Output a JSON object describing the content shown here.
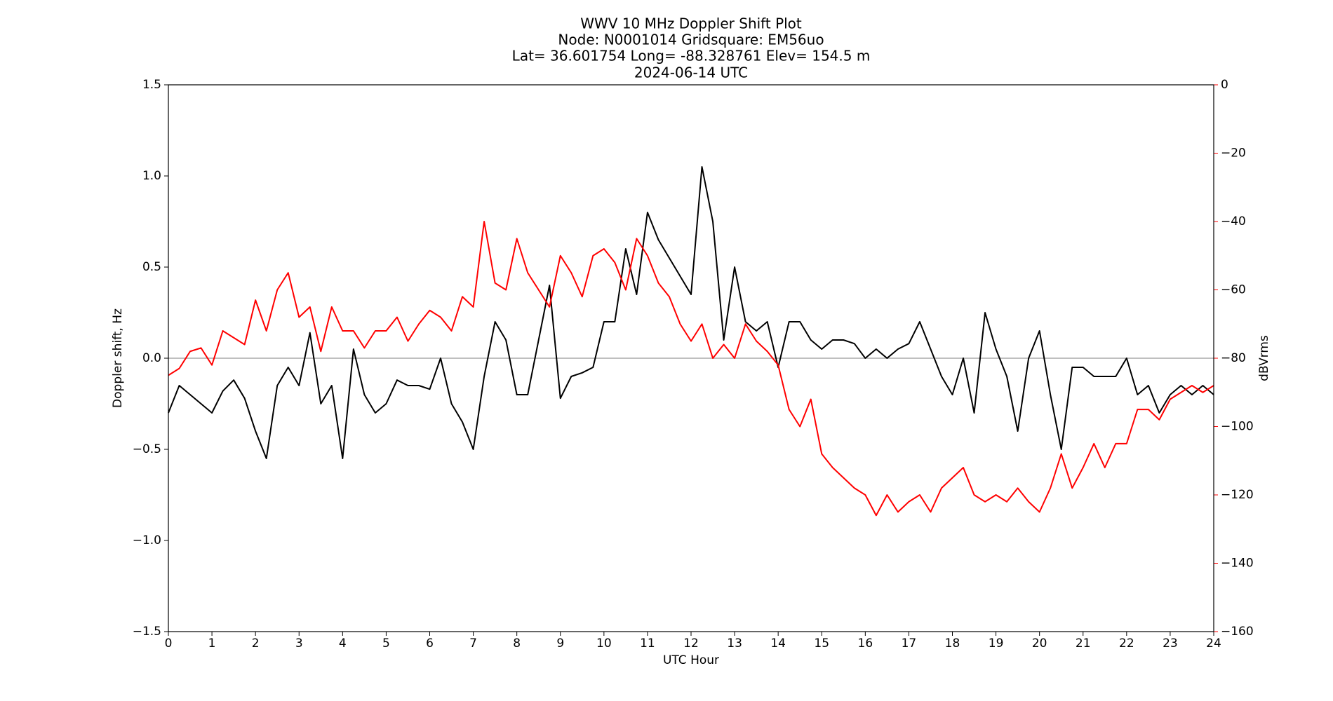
{
  "chart_data": {
    "type": "line",
    "title_lines": [
      "WWV 10 MHz Doppler Shift Plot",
      "Node:  N0001014     Gridsquare:  EM56uo",
      "Lat= 36.601754    Long= -88.328761    Elev= 154.5 m",
      "2024-06-14  UTC"
    ],
    "xlabel": "UTC Hour",
    "ylabel": "Doppler shift, Hz",
    "y2label": "dBVrms",
    "y2color": "#ff0000",
    "hline": 0,
    "hline_color": "#999999",
    "x": [
      0,
      0.25,
      0.5,
      0.75,
      1,
      1.25,
      1.5,
      1.75,
      2,
      2.25,
      2.5,
      2.75,
      3,
      3.25,
      3.5,
      3.75,
      4,
      4.25,
      4.5,
      4.75,
      5,
      5.25,
      5.5,
      5.75,
      6,
      6.25,
      6.5,
      6.75,
      7,
      7.25,
      7.5,
      7.75,
      8,
      8.25,
      8.5,
      8.75,
      9,
      9.25,
      9.5,
      9.75,
      10,
      10.25,
      10.5,
      10.75,
      11,
      11.25,
      11.5,
      11.75,
      12,
      12.25,
      12.5,
      12.75,
      13,
      13.25,
      13.5,
      13.75,
      14,
      14.25,
      14.5,
      14.75,
      15,
      15.25,
      15.5,
      15.75,
      16,
      16.25,
      16.5,
      16.75,
      17,
      17.25,
      17.5,
      17.75,
      18,
      18.25,
      18.5,
      18.75,
      19,
      19.25,
      19.5,
      19.75,
      20,
      20.25,
      20.5,
      20.75,
      21,
      21.25,
      21.5,
      21.75,
      22,
      22.25,
      22.5,
      22.75,
      23,
      23.25,
      23.5,
      23.75,
      24
    ],
    "series": [
      {
        "name": "Doppler shift",
        "color": "#000000",
        "values": [
          -0.3,
          -0.15,
          -0.2,
          -0.25,
          -0.3,
          -0.18,
          -0.12,
          -0.22,
          -0.4,
          -0.55,
          -0.15,
          -0.05,
          -0.15,
          0.14,
          -0.25,
          -0.15,
          -0.55,
          0.05,
          -0.2,
          -0.3,
          -0.25,
          -0.12,
          -0.15,
          -0.15,
          -0.17,
          0.0,
          -0.25,
          -0.35,
          -0.5,
          -0.1,
          0.2,
          0.1,
          -0.2,
          -0.2,
          0.1,
          0.4,
          -0.22,
          -0.1,
          -0.08,
          -0.05,
          0.2,
          0.2,
          0.6,
          0.35,
          0.8,
          0.65,
          0.55,
          0.45,
          0.35,
          1.05,
          0.75,
          0.1,
          0.5,
          0.2,
          0.15,
          0.2,
          -0.05,
          0.2,
          0.2,
          0.1,
          0.05,
          0.1,
          0.1,
          0.08,
          0.0,
          0.05,
          0.0,
          0.05,
          0.08,
          0.2,
          0.05,
          -0.1,
          -0.2,
          0.0,
          -0.3,
          0.25,
          0.05,
          -0.1,
          -0.4,
          0.0,
          0.15,
          -0.2,
          -0.5,
          -0.05,
          -0.05,
          -0.1,
          -0.1,
          -0.1,
          0.0,
          -0.2,
          -0.15,
          -0.3,
          -0.2,
          -0.15,
          -0.2,
          -0.15,
          -0.2
        ]
      },
      {
        "name": "dBVrms",
        "color": "#ff0000",
        "axis": "y2",
        "values": [
          -85,
          -83,
          -78,
          -77,
          -82,
          -72,
          -74,
          -76,
          -63,
          -72,
          -60,
          -55,
          -68,
          -65,
          -78,
          -65,
          -72,
          -72,
          -77,
          -72,
          -72,
          -68,
          -75,
          -70,
          -66,
          -68,
          -72,
          -62,
          -65,
          -40,
          -58,
          -60,
          -45,
          -55,
          -60,
          -65,
          -50,
          -55,
          -62,
          -50,
          -48,
          -52,
          -60,
          -45,
          -50,
          -58,
          -62,
          -70,
          -75,
          -70,
          -80,
          -76,
          -80,
          -70,
          -75,
          -78,
          -82,
          -95,
          -100,
          -92,
          -108,
          -112,
          -115,
          -118,
          -120,
          -126,
          -120,
          -125,
          -122,
          -120,
          -125,
          -118,
          -115,
          -112,
          -120,
          -122,
          -120,
          -122,
          -118,
          -122,
          -125,
          -118,
          -108,
          -118,
          -112,
          -105,
          -112,
          -105,
          -105,
          -95,
          -95,
          -98,
          -92,
          -90,
          -88,
          -90,
          -88
        ]
      }
    ],
    "xlim": [
      0,
      24
    ],
    "xticks": [
      0,
      1,
      2,
      3,
      4,
      5,
      6,
      7,
      8,
      9,
      10,
      11,
      12,
      13,
      14,
      15,
      16,
      17,
      18,
      19,
      20,
      21,
      22,
      23,
      24
    ],
    "ylim": [
      -1.5,
      1.5
    ],
    "yticks": [
      {
        "value": -1.5,
        "label": "−1.5"
      },
      {
        "value": -1.0,
        "label": "−1.0"
      },
      {
        "value": -0.5,
        "label": "−0.5"
      },
      {
        "value": 0,
        "label": "0.0"
      },
      0.5,
      {
        "value": 1.0,
        "label": "1.0"
      },
      1.5
    ],
    "y2lim": [
      -160,
      0
    ],
    "y2ticks": [
      {
        "value": -160,
        "label": "−160"
      },
      {
        "value": -140,
        "label": "−140"
      },
      {
        "value": -120,
        "label": "−120"
      },
      {
        "value": -100,
        "label": "−100"
      },
      {
        "value": -80,
        "label": "−80"
      },
      {
        "value": -60,
        "label": "−60"
      },
      {
        "value": -40,
        "label": "−40"
      },
      {
        "value": -20,
        "label": "−20"
      },
      0
    ]
  }
}
